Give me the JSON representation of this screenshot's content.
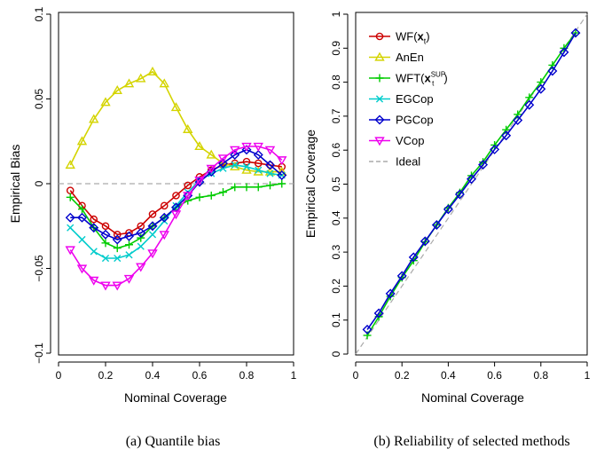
{
  "figure": {
    "caption_a": "(a) Quantile bias",
    "caption_b": "(b) Reliability of selected methods"
  },
  "chart_data": [
    {
      "type": "line",
      "panel": "a",
      "xlabel": "Nominal Coverage",
      "ylabel": "Empirical Bias",
      "xlim": [
        0,
        1
      ],
      "ylim": [
        -0.1,
        0.1
      ],
      "xticks": [
        "0",
        "0.2",
        "0.4",
        "0.6",
        "0.8",
        "1"
      ],
      "yticks": [
        "−0.1",
        "−0.05",
        "0",
        "0.05",
        "0.1"
      ],
      "reference_line": 0,
      "x": [
        0.05,
        0.1,
        0.15,
        0.2,
        0.25,
        0.3,
        0.35,
        0.4,
        0.45,
        0.5,
        0.55,
        0.6,
        0.65,
        0.7,
        0.75,
        0.8,
        0.85,
        0.9,
        0.95
      ],
      "series": [
        {
          "name": "WF",
          "color": "#cc0000",
          "marker": "circle",
          "values": [
            -0.004,
            -0.013,
            -0.021,
            -0.025,
            -0.03,
            -0.029,
            -0.025,
            -0.018,
            -0.013,
            -0.007,
            -0.001,
            0.004,
            0.008,
            0.011,
            0.012,
            0.013,
            0.012,
            0.011,
            0.01
          ]
        },
        {
          "name": "AnEn",
          "color": "#d4d400",
          "marker": "triangle-up",
          "values": [
            0.011,
            0.025,
            0.038,
            0.048,
            0.055,
            0.059,
            0.062,
            0.066,
            0.059,
            0.045,
            0.032,
            0.022,
            0.017,
            0.012,
            0.01,
            0.008,
            0.007,
            0.007,
            0.007
          ]
        },
        {
          "name": "WFT",
          "color": "#00cc00",
          "marker": "plus",
          "values": [
            -0.008,
            -0.015,
            -0.026,
            -0.035,
            -0.038,
            -0.036,
            -0.032,
            -0.025,
            -0.02,
            -0.014,
            -0.01,
            -0.008,
            -0.007,
            -0.005,
            -0.002,
            -0.002,
            -0.002,
            -0.001,
            0.0
          ]
        },
        {
          "name": "EGCop",
          "color": "#00cccc",
          "marker": "x",
          "values": [
            -0.026,
            -0.033,
            -0.04,
            -0.044,
            -0.044,
            -0.042,
            -0.037,
            -0.03,
            -0.022,
            -0.013,
            -0.005,
            0.002,
            0.006,
            0.009,
            0.011,
            0.01,
            0.008,
            0.006,
            0.005
          ]
        },
        {
          "name": "PGCop",
          "color": "#0000cc",
          "marker": "diamond",
          "values": [
            -0.02,
            -0.02,
            -0.026,
            -0.03,
            -0.033,
            -0.031,
            -0.029,
            -0.025,
            -0.02,
            -0.014,
            -0.007,
            0.001,
            0.007,
            0.012,
            0.017,
            0.02,
            0.017,
            0.011,
            0.005
          ]
        },
        {
          "name": "VCop",
          "color": "#ee00ee",
          "marker": "triangle-down",
          "values": [
            -0.039,
            -0.05,
            -0.057,
            -0.06,
            -0.06,
            -0.056,
            -0.049,
            -0.041,
            -0.03,
            -0.018,
            -0.007,
            0.002,
            0.009,
            0.015,
            0.02,
            0.022,
            0.022,
            0.02,
            0.014
          ]
        }
      ]
    },
    {
      "type": "line",
      "panel": "b",
      "xlabel": "Nominal Coverage",
      "ylabel": "Empirical Coverage",
      "xlim": [
        0,
        1
      ],
      "ylim": [
        0,
        1
      ],
      "xticks": [
        "0",
        "0.2",
        "0.4",
        "0.6",
        "0.8",
        "1"
      ],
      "yticks": [
        "0",
        "0.1",
        "0.2",
        "0.3",
        "0.4",
        "0.5",
        "0.6",
        "0.7",
        "0.8",
        "0.9",
        "1"
      ],
      "legend_position": "top-left",
      "legend": [
        {
          "label": "WF(x",
          "sub": "t",
          "tail": ")",
          "color": "#cc0000",
          "marker": "circle"
        },
        {
          "label": "AnEn",
          "color": "#d4d400",
          "marker": "triangle-up"
        },
        {
          "label": "WFT(x",
          "sub": "t",
          "sup": "SUP",
          "tail": ")",
          "color": "#00cc00",
          "marker": "plus"
        },
        {
          "label": "EGCop",
          "color": "#00cccc",
          "marker": "x"
        },
        {
          "label": "PGCop",
          "color": "#0000cc",
          "marker": "diamond"
        },
        {
          "label": "VCop",
          "color": "#ee00ee",
          "marker": "triangle-down"
        },
        {
          "label": "Ideal",
          "color": "#aaaaaa",
          "marker": "dashed"
        }
      ],
      "x": [
        0.05,
        0.1,
        0.15,
        0.2,
        0.25,
        0.3,
        0.35,
        0.4,
        0.45,
        0.5,
        0.55,
        0.6,
        0.65,
        0.7,
        0.75,
        0.8,
        0.85,
        0.9,
        0.95
      ],
      "series": [
        {
          "name": "WFT",
          "color": "#00cc00",
          "marker": "plus",
          "values": [
            0.055,
            0.11,
            0.17,
            0.225,
            0.275,
            0.33,
            0.38,
            0.43,
            0.475,
            0.525,
            0.565,
            0.615,
            0.66,
            0.705,
            0.755,
            0.8,
            0.85,
            0.9,
            0.945
          ]
        },
        {
          "name": "PGCop",
          "color": "#0000cc",
          "marker": "diamond",
          "values": [
            0.072,
            0.12,
            0.178,
            0.23,
            0.285,
            0.332,
            0.38,
            0.426,
            0.47,
            0.515,
            0.557,
            0.602,
            0.643,
            0.688,
            0.733,
            0.78,
            0.833,
            0.888,
            0.945
          ]
        }
      ]
    }
  ]
}
